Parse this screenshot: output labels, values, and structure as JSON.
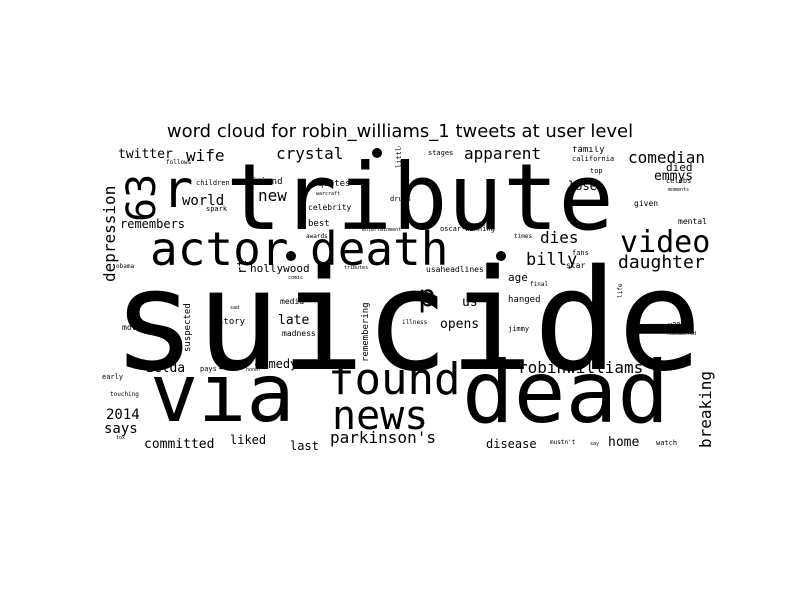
{
  "figure": {
    "title": "word cloud for robin_williams_1 tweets at user level"
  },
  "words": [
    "suicide",
    "tribute",
    "via",
    "dead",
    "actor",
    "death",
    "found",
    "news",
    "video",
    "63",
    "r",
    "p",
    "crystal",
    "apparent",
    "comedian",
    "daughter",
    "billy",
    "dies",
    "robinwilliams",
    "parkinson's",
    "breaking",
    "depression",
    "emmys",
    "twitter",
    "wife",
    "world",
    "new",
    "remembers",
    "hollywood",
    "late",
    "opens",
    "us",
    "zelda",
    "comedy",
    "2014",
    "says",
    "committed",
    "liked",
    "last",
    "disease",
    "home",
    "lose",
    "died",
    "age",
    "family",
    "quotes",
    "celebrity",
    "friend",
    "best",
    "story",
    "media",
    "madness",
    "suspected",
    "remembering",
    "movie",
    "rt",
    "jimmy",
    "hanged",
    "star",
    "fans",
    "children",
    "given",
    "celebs",
    "moments",
    "mental",
    "top",
    "california",
    "final",
    "usaheadlines",
    "little",
    "stages",
    "drugs",
    "oscar-winning",
    "times",
    "early",
    "touching",
    "pays",
    "honor",
    "illness",
    "obama",
    "warcraft",
    "spark",
    "entertainment",
    "awards",
    "tributes",
    "u2013",
    "remembered",
    "life",
    "watch",
    "mustn't",
    "say",
    "tox",
    "comic",
    "sad",
    "cause",
    "follows"
  ]
}
